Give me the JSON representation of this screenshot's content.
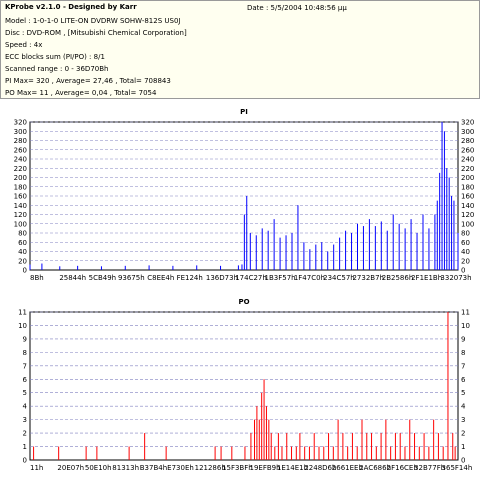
{
  "header": {
    "title": "KProbe v2.1.0 - Designed by Karr",
    "date": "Date : 5/5/2004 10:48:56 μμ",
    "lines": [
      "Model : 1-0-1-0 LITE-ON DVDRW SOHW-812S  US0J",
      "Disc : DVD-ROM , [Mitsubishi Chemical Corporation]",
      "Speed : 4x",
      "ECC blocks sum (PI/PO) : 8/1",
      "Scanned range : 0 - 36D70Bh",
      "PI Max= 320 , Average= 27,46 , Total= 708843",
      "PO Max= 11 , Average= 0,04 , Total= 7054"
    ]
  },
  "colors": {
    "series": "#0000ff",
    "series2": "#ff0000",
    "grid": "#8080c0",
    "axis": "#000000"
  },
  "chart_data": [
    {
      "type": "bar",
      "title": "PI",
      "ylim": [
        0,
        320
      ],
      "yticks": [
        0,
        20,
        40,
        60,
        80,
        100,
        120,
        140,
        160,
        180,
        200,
        220,
        240,
        260,
        280,
        300,
        320
      ],
      "xticks": [
        "8Bh",
        "25844h",
        "5CB49h",
        "93675h",
        "C8EE4h",
        "FE124h",
        "136D73h",
        "174C27h",
        "1B3F57h",
        "1F47C0h",
        "234C57h",
        "2732B7h",
        "2B2586h",
        "2F1E1Bh",
        "332073h"
      ],
      "xlim": [
        0,
        3594000
      ],
      "grid": true,
      "series": [
        {
          "x": [
            0,
            100000,
            250000,
            400000,
            600000,
            800000,
            1000000,
            1200000,
            1400000,
            1600000,
            1750000,
            1780000,
            1800000,
            1820000,
            1850000,
            1900000,
            1950000,
            2000000,
            2050000,
            2100000,
            2150000,
            2200000,
            2250000,
            2300000,
            2350000,
            2400000,
            2450000,
            2500000,
            2550000,
            2600000,
            2650000,
            2700000,
            2750000,
            2800000,
            2850000,
            2900000,
            2950000,
            3000000,
            3050000,
            3100000,
            3150000,
            3200000,
            3250000,
            3300000,
            3350000,
            3400000,
            3420000,
            3440000,
            3460000,
            3480000,
            3500000,
            3520000,
            3540000,
            3560000,
            3594000
          ],
          "values": [
            12,
            14,
            8,
            9,
            8,
            9,
            10,
            9,
            10,
            9,
            10,
            12,
            120,
            160,
            80,
            75,
            90,
            85,
            110,
            70,
            75,
            80,
            140,
            60,
            45,
            55,
            60,
            40,
            55,
            70,
            85,
            80,
            100,
            95,
            110,
            95,
            105,
            85,
            120,
            100,
            90,
            110,
            80,
            120,
            90,
            120,
            150,
            210,
            320,
            300,
            220,
            200,
            160,
            150,
            80
          ]
        }
      ]
    },
    {
      "type": "bar",
      "title": "PO",
      "ylim": [
        0,
        11
      ],
      "yticks": [
        0,
        1,
        2,
        3,
        4,
        5,
        6,
        7,
        8,
        9,
        10,
        11
      ],
      "xticks": [
        "11h",
        "20E07h",
        "50E10h",
        "81313h",
        "B37B4h",
        "E730Eh",
        "121286h",
        "15F3BFh",
        "19EFB9h",
        "1E14E1h",
        "2248D6h",
        "2661EEh",
        "2AC686h",
        "2F16CEh",
        "32B77Fh",
        "365F14h"
      ],
      "xlim": [
        0,
        3584000
      ],
      "grid": true,
      "series": [
        {
          "x": [
            30000,
            240000,
            470000,
            560000,
            830000,
            960000,
            1140000,
            1550000,
            1600000,
            1690000,
            1800000,
            1850000,
            1880000,
            1900000,
            1920000,
            1940000,
            1960000,
            1980000,
            2000000,
            2020000,
            2050000,
            2080000,
            2110000,
            2150000,
            2190000,
            2230000,
            2260000,
            2300000,
            2340000,
            2380000,
            2420000,
            2460000,
            2500000,
            2540000,
            2580000,
            2620000,
            2660000,
            2700000,
            2740000,
            2780000,
            2820000,
            2860000,
            2900000,
            2940000,
            2980000,
            3020000,
            3060000,
            3100000,
            3140000,
            3180000,
            3220000,
            3260000,
            3300000,
            3340000,
            3380000,
            3420000,
            3460000,
            3500000,
            3540000,
            3560000
          ],
          "values": [
            1,
            1,
            1,
            1,
            1,
            2,
            1,
            1,
            1,
            1,
            1,
            2,
            3,
            4,
            3,
            5,
            6,
            4,
            3,
            2,
            1,
            2,
            1,
            2,
            1,
            1,
            2,
            1,
            1,
            2,
            1,
            1,
            2,
            1,
            3,
            2,
            1,
            2,
            1,
            3,
            2,
            2,
            1,
            2,
            3,
            1,
            2,
            2,
            1,
            3,
            2,
            1,
            2,
            1,
            3,
            2,
            1,
            11,
            2,
            1
          ]
        }
      ]
    }
  ]
}
